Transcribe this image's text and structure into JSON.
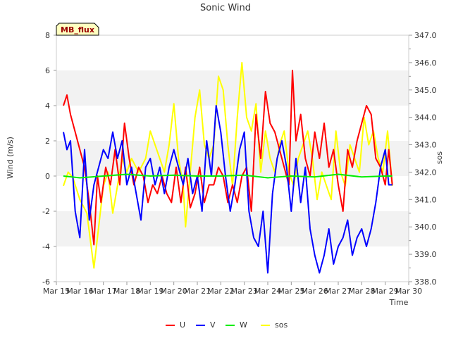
{
  "chart_data": {
    "type": "line",
    "title": "Sonic Wind",
    "xlabel": "Time",
    "ylabel": "Wind (m/s)",
    "y2label": "sos",
    "badge": "MB_flux",
    "ylim": [
      -6,
      8
    ],
    "y2lim": [
      338.0,
      347.0
    ],
    "xlim": [
      15,
      30
    ],
    "yticks": [
      "-6",
      "-4",
      "-2",
      "0",
      "2",
      "4",
      "6",
      "8"
    ],
    "y2ticks": [
      "338.0",
      "339.0",
      "340.0",
      "341.0",
      "342.0",
      "343.0",
      "344.0",
      "345.0",
      "346.0",
      "347.0"
    ],
    "xticks": [
      "Mar 15",
      "Mar 16",
      "Mar 17",
      "Mar 18",
      "Mar 19",
      "Mar 20",
      "Mar 21",
      "Mar 22",
      "Mar 23",
      "Mar 24",
      "Mar 25",
      "Mar 26",
      "Mar 27",
      "Mar 28",
      "Mar 29",
      "Mar 30"
    ],
    "grid": "horizontal bands",
    "legend_position": "bottom-center",
    "series": [
      {
        "name": "U",
        "axis": "left",
        "color": "#ff0000",
        "x": [
          15.3,
          15.45,
          15.6,
          15.8,
          16.0,
          16.2,
          16.4,
          16.6,
          16.75,
          16.9,
          17.1,
          17.3,
          17.5,
          17.7,
          17.9,
          18.1,
          18.3,
          18.5,
          18.7,
          18.9,
          19.1,
          19.3,
          19.5,
          19.7,
          19.9,
          20.1,
          20.3,
          20.5,
          20.7,
          20.9,
          21.1,
          21.3,
          21.5,
          21.7,
          21.9,
          22.1,
          22.3,
          22.5,
          22.7,
          22.9,
          23.1,
          23.3,
          23.5,
          23.7,
          23.9,
          24.1,
          24.3,
          24.5,
          24.7,
          24.9,
          25.05,
          25.2,
          25.4,
          25.6,
          25.8,
          26.0,
          26.2,
          26.4,
          26.6,
          26.8,
          27.0,
          27.2,
          27.4,
          27.6,
          27.8,
          28.0,
          28.2,
          28.4,
          28.6,
          28.8,
          29.0,
          29.15,
          29.3
        ],
        "values": [
          4.0,
          4.6,
          3.5,
          2.5,
          1.5,
          0.5,
          -1.5,
          -3.9,
          0.0,
          -1.5,
          0.5,
          -0.5,
          1.5,
          -0.5,
          3.0,
          1.0,
          -0.5,
          0.5,
          0.0,
          -1.5,
          -0.5,
          -1.0,
          0.0,
          -1.0,
          -1.5,
          0.5,
          -1.5,
          0.5,
          -1.8,
          -1.0,
          0.5,
          -1.5,
          -0.5,
          -0.5,
          0.5,
          0.0,
          -1.5,
          -0.5,
          -1.5,
          0.0,
          0.5,
          -2.0,
          3.5,
          1.0,
          4.8,
          3.0,
          2.5,
          1.5,
          0.5,
          -0.5,
          6.0,
          2.0,
          3.5,
          1.0,
          0.0,
          2.5,
          1.0,
          3.0,
          0.5,
          1.5,
          -0.5,
          -2.0,
          1.5,
          0.5,
          2.0,
          3.0,
          4.0,
          3.5,
          1.0,
          0.5,
          -0.5,
          1.5,
          -0.5
        ]
      },
      {
        "name": "V",
        "axis": "left",
        "color": "#0000ff",
        "x": [
          15.3,
          15.45,
          15.6,
          15.8,
          16.0,
          16.2,
          16.4,
          16.6,
          16.8,
          17.0,
          17.2,
          17.4,
          17.6,
          17.8,
          18.0,
          18.2,
          18.4,
          18.6,
          18.8,
          19.0,
          19.2,
          19.4,
          19.6,
          19.8,
          20.0,
          20.2,
          20.4,
          20.6,
          20.8,
          21.0,
          21.2,
          21.4,
          21.6,
          21.8,
          22.0,
          22.2,
          22.4,
          22.6,
          22.8,
          23.0,
          23.2,
          23.4,
          23.6,
          23.8,
          24.0,
          24.2,
          24.4,
          24.6,
          24.8,
          25.0,
          25.2,
          25.4,
          25.6,
          25.8,
          26.0,
          26.2,
          26.4,
          26.6,
          26.8,
          27.0,
          27.2,
          27.4,
          27.6,
          27.8,
          28.0,
          28.2,
          28.4,
          28.6,
          28.8,
          29.0,
          29.15,
          29.3
        ],
        "values": [
          2.5,
          1.5,
          2.0,
          -2.0,
          -3.5,
          1.5,
          -2.5,
          -0.5,
          0.5,
          1.5,
          1.0,
          2.5,
          1.0,
          2.0,
          -0.5,
          0.5,
          -1.0,
          -2.5,
          0.5,
          1.0,
          -0.5,
          0.5,
          -1.0,
          0.5,
          1.5,
          0.5,
          -0.5,
          1.0,
          -1.0,
          0.0,
          -2.0,
          2.0,
          0.0,
          4.0,
          2.5,
          0.0,
          -2.0,
          -0.5,
          1.5,
          2.5,
          -2.0,
          -3.5,
          -4.0,
          -2.0,
          -5.5,
          -1.0,
          1.0,
          2.0,
          0.5,
          -2.0,
          1.0,
          -1.5,
          0.5,
          -3.0,
          -4.5,
          -5.5,
          -4.5,
          -3.0,
          -5.0,
          -4.0,
          -3.5,
          -2.5,
          -4.5,
          -3.5,
          -3.0,
          -4.0,
          -3.0,
          -1.5,
          0.5,
          1.5,
          -0.5,
          -0.5
        ]
      },
      {
        "name": "W",
        "axis": "left",
        "color": "#00ee00",
        "x": [
          15.3,
          16.0,
          17.0,
          18.0,
          19.0,
          20.0,
          21.0,
          22.0,
          23.0,
          24.0,
          25.0,
          26.0,
          27.0,
          28.0,
          29.0,
          29.3
        ],
        "values": [
          0.0,
          -0.1,
          0.0,
          0.1,
          0.0,
          0.05,
          0.0,
          0.0,
          0.05,
          -0.1,
          0.0,
          -0.05,
          0.1,
          -0.05,
          0.0,
          0.0
        ]
      },
      {
        "name": "sos",
        "axis": "right",
        "color": "#ffff00",
        "x": [
          15.3,
          15.5,
          15.7,
          16.0,
          16.3,
          16.6,
          16.8,
          17.0,
          17.2,
          17.4,
          17.6,
          17.8,
          18.0,
          18.2,
          18.5,
          18.8,
          19.0,
          19.2,
          19.4,
          19.6,
          19.8,
          20.0,
          20.2,
          20.4,
          20.5,
          20.7,
          20.9,
          21.1,
          21.3,
          21.5,
          21.7,
          21.9,
          22.1,
          22.3,
          22.5,
          22.7,
          22.9,
          23.1,
          23.3,
          23.5,
          23.7,
          23.9,
          24.1,
          24.3,
          24.5,
          24.7,
          24.9,
          25.1,
          25.3,
          25.5,
          25.7,
          25.9,
          26.1,
          26.3,
          26.5,
          26.7,
          26.9,
          27.1,
          27.3,
          27.5,
          27.7,
          27.9,
          28.1,
          28.3,
          28.5,
          28.7,
          28.9,
          29.1,
          29.3
        ],
        "values": [
          341.5,
          342.0,
          341.8,
          341.0,
          340.5,
          338.5,
          340.0,
          341.5,
          342.0,
          340.5,
          341.5,
          342.5,
          342.0,
          342.5,
          342.0,
          342.5,
          343.5,
          343.0,
          342.5,
          342.0,
          343.0,
          344.5,
          342.5,
          341.5,
          340.0,
          342.0,
          344.0,
          345.0,
          343.0,
          342.5,
          343.0,
          345.5,
          345.0,
          343.0,
          341.5,
          344.0,
          346.0,
          344.0,
          343.5,
          344.5,
          342.0,
          343.5,
          342.5,
          342.0,
          343.0,
          343.5,
          342.0,
          341.5,
          342.5,
          343.0,
          343.5,
          342.5,
          341.0,
          342.0,
          341.5,
          341.0,
          343.5,
          342.0,
          341.5,
          343.0,
          342.5,
          342.0,
          344.0,
          343.0,
          343.5,
          342.5,
          342.0,
          343.5,
          341.5
        ]
      }
    ]
  }
}
